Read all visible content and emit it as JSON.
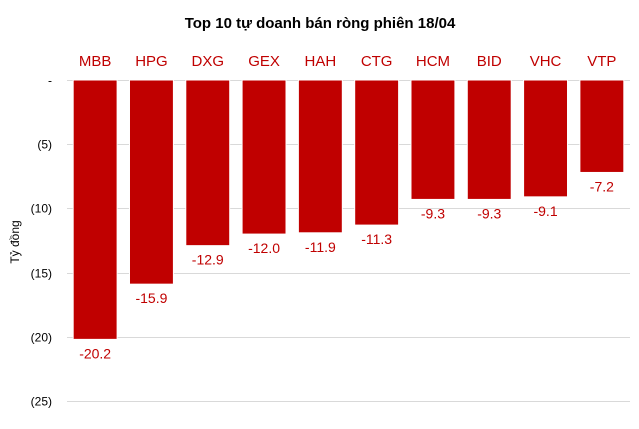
{
  "chart_data": {
    "type": "bar",
    "title": "Top 10 tự doanh bán ròng phiên 18/04",
    "ylabel": "Tỷ đồng",
    "xlabel": "",
    "categories": [
      "MBB",
      "HPG",
      "DXG",
      "GEX",
      "HAH",
      "CTG",
      "HCM",
      "BID",
      "VHC",
      "VTP"
    ],
    "values": [
      -20.2,
      -15.9,
      -12.9,
      -12.0,
      -11.9,
      -11.3,
      -9.3,
      -9.3,
      -9.1,
      -7.2
    ],
    "data_labels": [
      "-20.2",
      "-15.9",
      "-12.9",
      "-12.0",
      "-11.9",
      "-11.3",
      "-9.3",
      "-9.3",
      "-9.1",
      "-7.2"
    ],
    "ylim": [
      -25,
      0
    ],
    "yticks": [
      0,
      -5,
      -10,
      -15,
      -20,
      -25
    ],
    "ytick_labels": [
      "-",
      "(5)",
      "(10)",
      "(15)",
      "(20)",
      "(25)"
    ],
    "grid": true,
    "legend": "none",
    "colors": {
      "bar": "#c00000",
      "text": "#c00000",
      "grid": "#d9d9d9"
    }
  }
}
